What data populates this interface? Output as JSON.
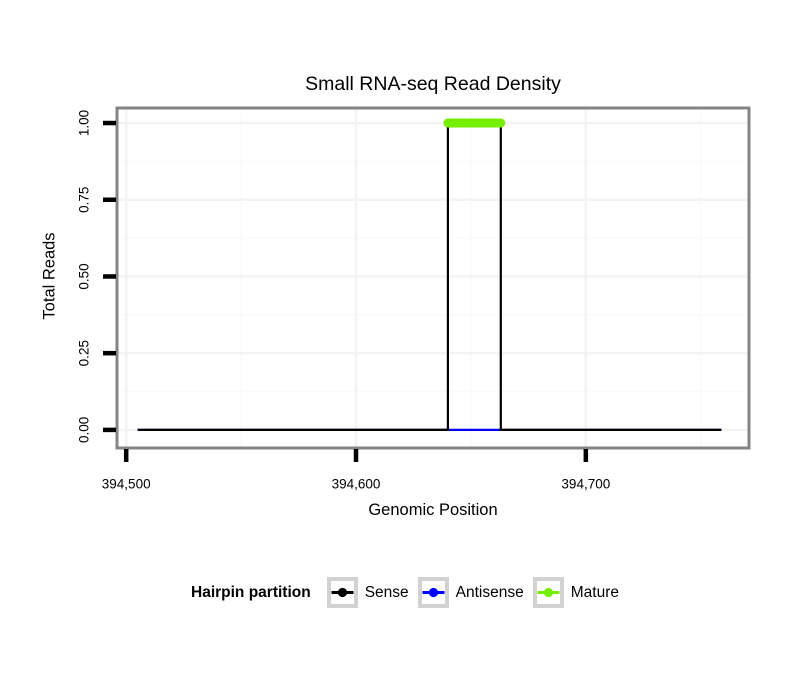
{
  "chart_data": {
    "type": "line",
    "title": "Small RNA-seq Read Density",
    "xlabel": "Genomic Position",
    "ylabel": "Total Reads",
    "xlim": [
      394496,
      394771
    ],
    "ylim": [
      -0.059,
      1.049
    ],
    "grid": true,
    "x_ticks": [
      {
        "value": 394500,
        "label": "394,500"
      },
      {
        "value": 394600,
        "label": "394,600"
      },
      {
        "value": 394700,
        "label": "394,700"
      }
    ],
    "x_minor_gridlines": [
      394550,
      394650,
      394750
    ],
    "y_ticks": [
      {
        "value": 0.0,
        "label": "0.00"
      },
      {
        "value": 0.25,
        "label": "0.25"
      },
      {
        "value": 0.5,
        "label": "0.50"
      },
      {
        "value": 0.75,
        "label": "0.75"
      },
      {
        "value": 1.0,
        "label": "1.00"
      }
    ],
    "y_minor_gridlines": [
      0.125,
      0.375,
      0.625,
      0.875
    ],
    "colors": {
      "sense": "#000000",
      "antisense": "#0000FF",
      "mature": "#76EE00",
      "panel_border": "#848484",
      "grid_major": "#F3F3F3",
      "grid_minor": "#FAFAFA",
      "legend_key_border": "#D2D2D2",
      "tick_mark": "#000000"
    },
    "series": [
      {
        "name": "Antisense",
        "color": "#0000FF",
        "stroke_width": 2.2,
        "linecap": "butt",
        "points": [
          [
            394505,
            0
          ],
          [
            394759,
            0
          ]
        ]
      },
      {
        "name": "Sense",
        "color": "#000000",
        "stroke_width": 2.2,
        "linecap": "butt",
        "points": [
          [
            394505,
            0
          ],
          [
            394640,
            0
          ],
          [
            394640,
            1
          ],
          [
            394663,
            1
          ],
          [
            394663,
            0
          ],
          [
            394759,
            0
          ]
        ]
      },
      {
        "name": "Mature",
        "color": "#76EE00",
        "stroke_width": 9,
        "linecap": "round",
        "points": [
          [
            394640,
            1
          ],
          [
            394663,
            1
          ]
        ]
      }
    ],
    "legend": {
      "title": "Hairpin partition",
      "position": "bottom",
      "entries": [
        {
          "label": "Sense",
          "color": "#000000"
        },
        {
          "label": "Antisense",
          "color": "#0000FF"
        },
        {
          "label": "Mature",
          "color": "#76EE00"
        }
      ]
    }
  }
}
